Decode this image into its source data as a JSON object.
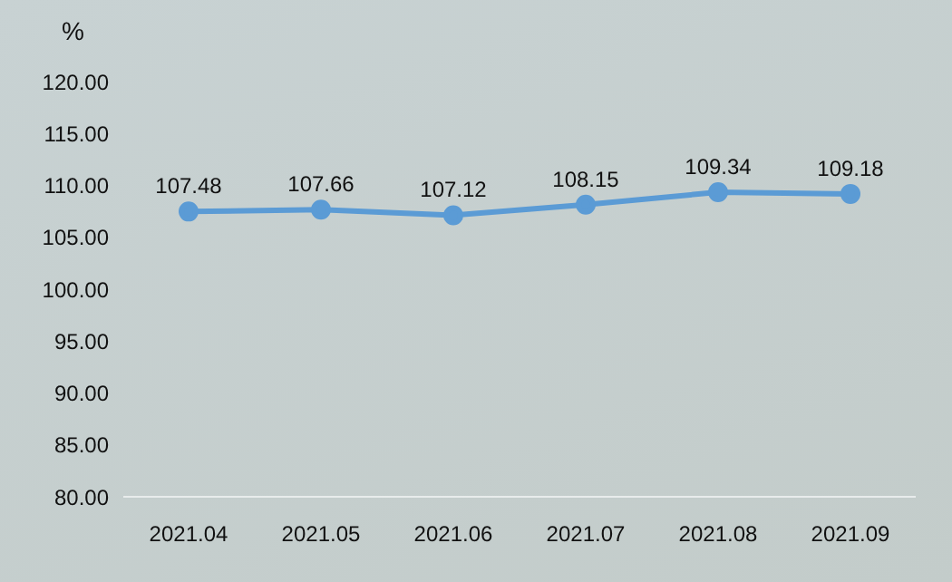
{
  "chart_data": {
    "type": "line",
    "ylabel": "%",
    "categories": [
      "2021.04",
      "2021.05",
      "2021.06",
      "2021.07",
      "2021.08",
      "2021.09"
    ],
    "values": [
      107.48,
      107.66,
      107.12,
      108.15,
      109.34,
      109.18
    ],
    "color": "#5b9bd5",
    "marker": "circle",
    "line_style": "solid",
    "data_labels": true,
    "ylim": [
      80,
      120
    ],
    "yticks": [
      {
        "value": 80,
        "label": "80.00"
      },
      {
        "value": 85,
        "label": "85.00"
      },
      {
        "value": 90,
        "label": "90.00"
      },
      {
        "value": 95,
        "label": "95.00"
      },
      {
        "value": 100,
        "label": "100.00"
      },
      {
        "value": 105,
        "label": "105.00"
      },
      {
        "value": 110,
        "label": "110.00"
      },
      {
        "value": 115,
        "label": "115.00"
      },
      {
        "value": 120,
        "label": "120.00"
      }
    ]
  }
}
